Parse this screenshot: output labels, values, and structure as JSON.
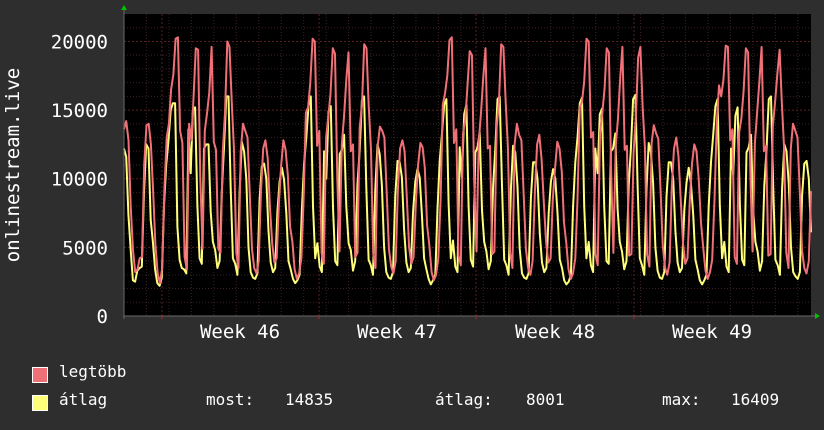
{
  "chart_data": {
    "type": "line",
    "ylabel": "onlinestream.live",
    "yticks": [
      0,
      5000,
      10000,
      15000,
      20000
    ],
    "ylim": [
      0,
      22000
    ],
    "x_labels": [
      "Week 46",
      "Week 47",
      "Week 48",
      "Week 49"
    ],
    "grid": true,
    "series": [
      {
        "name": "legtöbb",
        "color": "#f07078",
        "values": [
          13600,
          14200,
          12800,
          8000,
          4800,
          3200,
          3400,
          4200,
          4300,
          11000,
          13900,
          14000,
          12500,
          9000,
          5200,
          3100,
          2400,
          3500,
          9200,
          13000,
          14000,
          16500,
          17600,
          20200,
          20300,
          13500,
          12600,
          4300,
          3400,
          14000,
          12800,
          16000,
          19500,
          19400,
          10000,
          4900,
          13500,
          14800,
          16300,
          19600,
          12700,
          12100,
          4900,
          4600,
          12000,
          14800,
          20000,
          19600,
          15500,
          12100,
          4600,
          3500,
          12000,
          14000,
          13500,
          13000,
          9000,
          4900,
          3500,
          3100,
          4000,
          9100,
          12200,
          12800,
          11500,
          8000,
          5300,
          3900,
          4200,
          8200,
          11000,
          12800,
          12100,
          10200,
          6500,
          5400,
          3400,
          2700,
          3100,
          4200,
          8500,
          14800,
          15200,
          17000,
          20200,
          20000,
          12400,
          13500,
          4600,
          3800,
          13000,
          14500,
          16200,
          19500,
          19100,
          10000,
          4700,
          12500,
          14500,
          17200,
          19200,
          12000,
          12500,
          4300,
          4600,
          13700,
          15400,
          19800,
          19500,
          15300,
          12100,
          4600,
          3500,
          12400,
          13800,
          13500,
          13000,
          9000,
          4900,
          3600,
          3100,
          4000,
          9200,
          12200,
          12800,
          12000,
          8500,
          5000,
          3800,
          4300,
          8300,
          11000,
          12600,
          12300,
          10800,
          6600,
          5200,
          3200,
          2600,
          3000,
          4200,
          8500,
          15400,
          16200,
          17500,
          20100,
          20300,
          12600,
          13600,
          4400,
          3700,
          13300,
          14300,
          16800,
          19300,
          19000,
          9800,
          4700,
          12600,
          14800,
          17300,
          19500,
          12200,
          12400,
          4500,
          4700,
          13800,
          15500,
          19800,
          19600,
          15600,
          12300,
          4600,
          3500,
          12500,
          14000,
          13200,
          12800,
          9000,
          4900,
          3500,
          3000,
          4000,
          9100,
          12500,
          13200,
          11400,
          8300,
          5400,
          3900,
          4200,
          8500,
          10800,
          12700,
          12200,
          10500,
          6800,
          5300,
          3400,
          2700,
          3100,
          4200,
          8500,
          15200,
          15600,
          17100,
          20200,
          20000,
          13000,
          13400,
          4500,
          3700,
          13300,
          14700,
          16500,
          19500,
          19200,
          10300,
          4600,
          12400,
          14300,
          17300,
          19600,
          12100,
          12400,
          4400,
          4500,
          12000,
          14500,
          18800,
          19600,
          15300,
          12300,
          4500,
          3600,
          12600,
          13900,
          13300,
          12900,
          9100,
          5100,
          3500,
          3000,
          3900,
          9400,
          12200,
          13000,
          11600,
          8400,
          5300,
          3800,
          4200,
          8400,
          11100,
          12500,
          12000,
          10000,
          6800,
          5000,
          3300,
          2700,
          3200,
          4100,
          8500,
          13900,
          16800,
          16000,
          17200,
          19700,
          19600,
          12800,
          13600,
          4300,
          3800,
          13400,
          14400,
          16400,
          19500,
          19200,
          10200,
          4700,
          12600,
          14800,
          17100,
          19600,
          12000,
          12400,
          4400,
          4500,
          13800,
          15600,
          17600,
          19400,
          15600,
          12200,
          4600,
          3500,
          12200,
          14000,
          13500,
          13000,
          9100,
          4800,
          3500,
          3100,
          4000,
          9100
        ]
      },
      {
        "name": "átlag",
        "color": "#fefe7a",
        "values": [
          12200,
          11600,
          7400,
          4800,
          2600,
          2500,
          3300,
          3500,
          3600,
          9000,
          12500,
          12200,
          7000,
          5400,
          3400,
          2400,
          2200,
          2800,
          8000,
          11000,
          12800,
          15000,
          15500,
          15500,
          6500,
          4100,
          3500,
          3400,
          3100,
          13600,
          10400,
          15000,
          15200,
          8000,
          4200,
          3800,
          12200,
          12500,
          12500,
          7600,
          5400,
          4800,
          3500,
          4000,
          9000,
          12300,
          16000,
          16000,
          9300,
          4200,
          3800,
          3000,
          9000,
          12700,
          12000,
          10000,
          5000,
          3200,
          2800,
          2700,
          3100,
          8500,
          10900,
          11100,
          10000,
          6200,
          3900,
          3200,
          3500,
          7600,
          9800,
          10800,
          9900,
          7500,
          4000,
          3400,
          2700,
          2400,
          2600,
          3000,
          7800,
          11100,
          13000,
          15300,
          16000,
          8000,
          4200,
          5300,
          3600,
          3200,
          12000,
          10000,
          14900,
          15300,
          7900,
          4000,
          3700,
          11800,
          12100,
          13200,
          8000,
          5300,
          4800,
          3300,
          4000,
          9500,
          12100,
          15700,
          16000,
          9400,
          4100,
          3700,
          3000,
          9100,
          12500,
          11800,
          9500,
          5000,
          3200,
          2800,
          2700,
          3200,
          8700,
          11300,
          11200,
          10100,
          6300,
          3900,
          3200,
          3500,
          7500,
          9800,
          10700,
          10100,
          7400,
          4200,
          3400,
          2700,
          2300,
          2600,
          3000,
          7800,
          11300,
          13200,
          15400,
          15800,
          8200,
          4200,
          5500,
          3600,
          3200,
          12300,
          10100,
          14700,
          15400,
          8000,
          4100,
          3600,
          11900,
          12300,
          13400,
          7700,
          5400,
          4700,
          3400,
          4000,
          9400,
          12200,
          15800,
          16000,
          9500,
          4100,
          3700,
          3000,
          9200,
          12400,
          11900,
          9400,
          4900,
          3100,
          2800,
          2700,
          3100,
          8600,
          11200,
          11200,
          10000,
          6000,
          3900,
          3200,
          3500,
          7500,
          9800,
          10700,
          10000,
          7500,
          4100,
          3500,
          2600,
          2300,
          2500,
          3000,
          8000,
          11200,
          13100,
          15500,
          15900,
          8000,
          4200,
          5400,
          3700,
          3200,
          12200,
          10400,
          14700,
          15100,
          8000,
          4000,
          3800,
          12000,
          12200,
          13300,
          7800,
          5400,
          4700,
          3400,
          4000,
          9500,
          12200,
          15800,
          16100,
          9500,
          4200,
          3700,
          3000,
          9300,
          12600,
          11900,
          9700,
          5000,
          3300,
          2800,
          2700,
          3200,
          8700,
          11200,
          11200,
          10000,
          6200,
          3900,
          3200,
          3500,
          7700,
          9700,
          10800,
          9700,
          7400,
          4100,
          3400,
          2600,
          2300,
          2600,
          3000,
          8000,
          11200,
          13200,
          15300,
          15800,
          8100,
          4200,
          5400,
          3600,
          3200,
          12200,
          10300,
          14600,
          15200,
          8100,
          4100,
          3700,
          11900,
          12300,
          13200,
          7700,
          5400,
          4700,
          3300,
          4000,
          9500,
          12100,
          15800,
          16000,
          9400,
          4100,
          3700,
          3000,
          9300,
          12500,
          12000,
          9600,
          5000,
          3200,
          2900,
          2700,
          3200,
          8800,
          11100,
          11300,
          10000,
          6100
        ]
      }
    ]
  },
  "legend": {
    "items": [
      {
        "label": "legtöbb",
        "color": "#f07078"
      },
      {
        "label": "átlag",
        "color": "#fefe7a"
      }
    ],
    "stats": {
      "now_label": "most:",
      "now_value": "14835",
      "avg_label": "átlag:",
      "avg_value": "8001",
      "max_label": "max:",
      "max_value": "16409"
    }
  },
  "colors": {
    "background": "#2e2e2e",
    "plot_background": "#000000",
    "grid": "#3a1515",
    "axis": "#6a6a6a",
    "arrow": "#00c000"
  }
}
